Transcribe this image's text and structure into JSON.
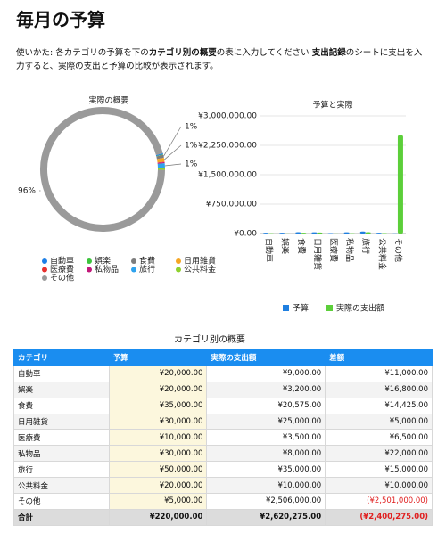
{
  "header": {
    "title": "毎月の予算",
    "instructions": [
      "使いかた: 各カテゴリの予算を下の",
      "カテゴリ別の概要",
      "の表に入力してください ",
      "支出記録",
      "のシートに支出を入力すると、実際の支出と予算の比較が表示されます。"
    ]
  },
  "chart_data": [
    {
      "type": "pie",
      "donut": true,
      "title": "実際の概要",
      "categories": [
        "自動車",
        "娯楽",
        "食費",
        "日用雑貨",
        "医療費",
        "私物品",
        "旅行",
        "公共料金",
        "その他"
      ],
      "values": [
        0.3,
        0.1,
        0.8,
        1.0,
        0.1,
        0.3,
        1.3,
        0.4,
        95.6
      ],
      "value_labels": [
        null,
        null,
        "1%",
        "1%",
        null,
        null,
        "1%",
        null,
        "96%"
      ],
      "colors": [
        "#1d7fe6",
        "#3cc43c",
        "#7d7d7d",
        "#f5a623",
        "#e8312f",
        "#c2187a",
        "#2fa3ee",
        "#8fd12f",
        "#9a9a9a"
      ]
    },
    {
      "type": "bar",
      "title": "予算と実際",
      "categories": [
        "自動車",
        "娯楽",
        "食費",
        "日用雑貨",
        "医療費",
        "私物品",
        "旅行",
        "公共料金",
        "その他"
      ],
      "series": [
        {
          "name": "予算",
          "color": "#1f7fe0",
          "values": [
            20000,
            20000,
            35000,
            30000,
            10000,
            30000,
            50000,
            20000,
            5000
          ]
        },
        {
          "name": "実際の支出額",
          "color": "#5ccf3a",
          "values": [
            9000,
            3200,
            20575,
            25000,
            3500,
            8000,
            35000,
            10000,
            2506000
          ]
        }
      ],
      "ylim": [
        0,
        3000000
      ],
      "yticks": [
        {
          "value": 0,
          "label": "¥0.00"
        },
        {
          "value": 750000,
          "label": "¥750,000.00"
        },
        {
          "value": 1500000,
          "label": "¥1,500,000.00"
        },
        {
          "value": 2250000,
          "label": "¥2,250,000.00"
        },
        {
          "value": 3000000,
          "label": "¥3,000,000.00"
        }
      ],
      "grid": true,
      "legend": "bottom"
    }
  ],
  "table": {
    "title": "カテゴリ別の概要",
    "columns": [
      "カテゴリ",
      "予算",
      "実際の支出額",
      "差額"
    ],
    "rows": [
      [
        "自動車",
        "¥20,000.00",
        "¥9,000.00",
        "¥11,000.00"
      ],
      [
        "娯楽",
        "¥20,000.00",
        "¥3,200.00",
        "¥16,800.00"
      ],
      [
        "食費",
        "¥35,000.00",
        "¥20,575.00",
        "¥14,425.00"
      ],
      [
        "日用雑貨",
        "¥30,000.00",
        "¥25,000.00",
        "¥5,000.00"
      ],
      [
        "医療費",
        "¥10,000.00",
        "¥3,500.00",
        "¥6,500.00"
      ],
      [
        "私物品",
        "¥30,000.00",
        "¥8,000.00",
        "¥22,000.00"
      ],
      [
        "旅行",
        "¥50,000.00",
        "¥35,000.00",
        "¥15,000.00"
      ],
      [
        "公共料金",
        "¥20,000.00",
        "¥10,000.00",
        "¥10,000.00"
      ],
      [
        "その他",
        "¥5,000.00",
        "¥2,506,000.00",
        "(¥2,501,000.00)"
      ]
    ],
    "total": [
      "合計",
      "¥220,000.00",
      "¥2,620,275.00",
      "(¥2,400,275.00)"
    ]
  }
}
